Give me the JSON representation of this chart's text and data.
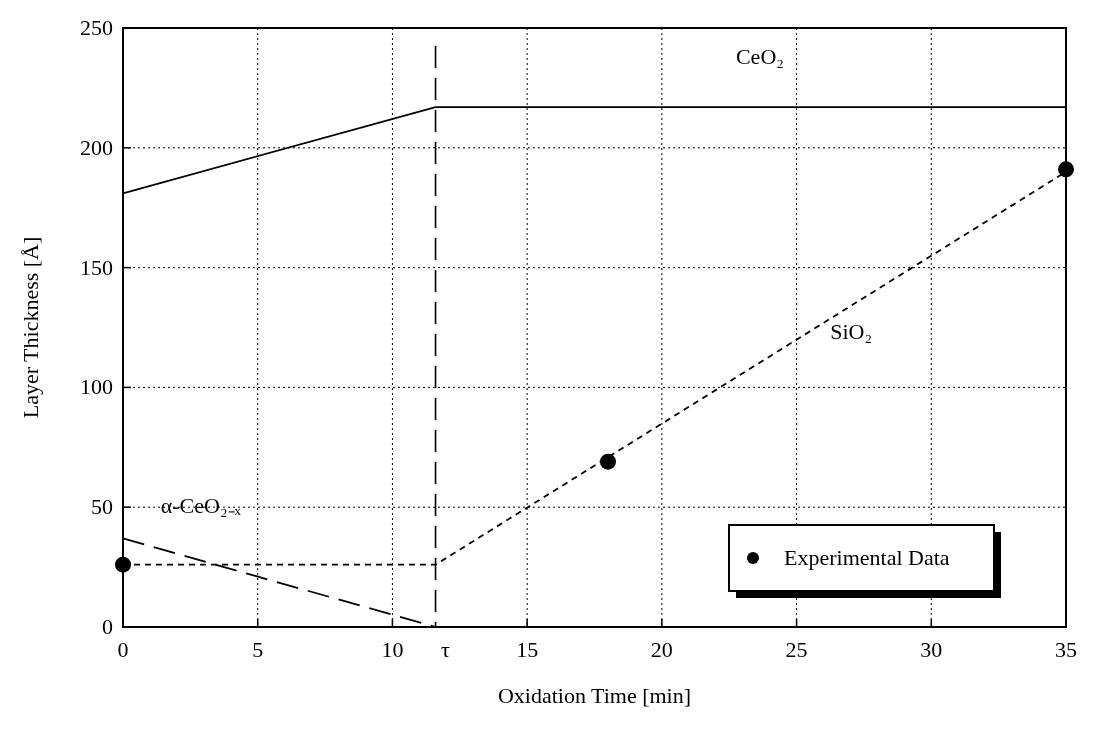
{
  "chart_data": {
    "type": "line",
    "xlabel": "Oxidation Time [min]",
    "ylabel": "Layer Thickness [Å]",
    "xlim": [
      0,
      35
    ],
    "xticks": [
      0,
      5,
      10,
      15,
      20,
      25,
      30,
      35
    ],
    "ylim": [
      0,
      250
    ],
    "yticks": [
      0,
      50,
      100,
      150,
      200,
      250
    ],
    "grid": true,
    "legend": "bottom right",
    "ref_lines": [
      {
        "axis": "x",
        "value": 11.6,
        "label": "τ",
        "line_style": "dashed",
        "color": "#000000"
      }
    ],
    "series": [
      {
        "name": "CeO₂",
        "color": "#000000",
        "line_style": "solid",
        "x": [
          0,
          11.6,
          35
        ],
        "values": [
          181,
          217,
          217
        ]
      },
      {
        "name": "SiO₂",
        "color": "#000000",
        "line_style": "dotted",
        "x": [
          0,
          11.6,
          35
        ],
        "values": [
          26,
          26,
          190
        ]
      },
      {
        "name": "α-CeO₂₋ₓ",
        "color": "#000000",
        "line_style": "dashed",
        "x": [
          0,
          11.6
        ],
        "values": [
          37,
          0
        ]
      },
      {
        "name": "Experimental Data",
        "type": "scatter",
        "color": "#000000",
        "marker": "circle",
        "x": [
          0,
          18,
          35
        ],
        "values": [
          26,
          69,
          191
        ]
      }
    ]
  }
}
